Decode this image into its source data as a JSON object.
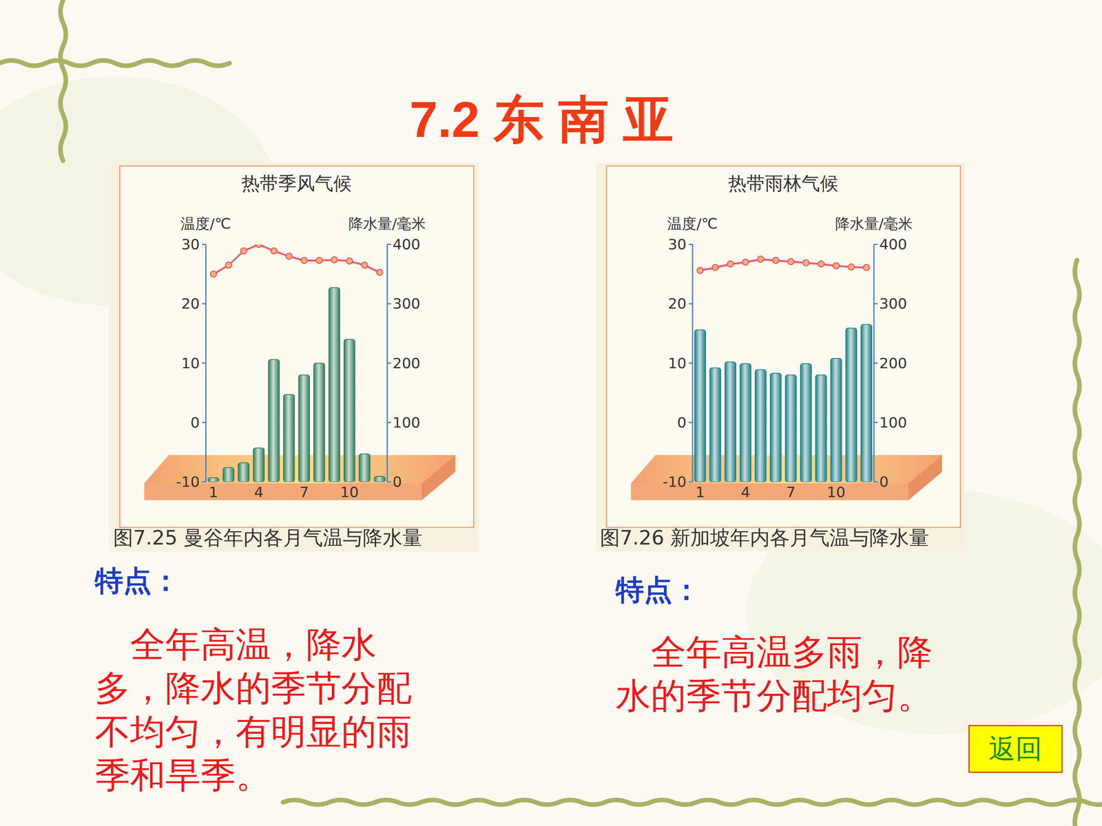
{
  "slide_title": "7.2 东 南 亚",
  "chart_data": [
    {
      "type": "bar_line",
      "title": "热带季风气候",
      "y_label": "温度/℃",
      "y2_label": "降水量/毫米",
      "caption": "图7.25 曼谷年内各月气温与降水量",
      "categories": [
        "1",
        null,
        null,
        "4",
        null,
        null,
        "7",
        null,
        null,
        "10",
        null,
        null
      ],
      "ylim": [
        -10,
        30
      ],
      "yticks": [
        -10,
        0,
        10,
        20,
        30
      ],
      "y2lim": [
        0,
        400
      ],
      "y2ticks": [
        0,
        100,
        200,
        300,
        400
      ],
      "series": [
        {
          "type": "line",
          "color": "#e8506a",
          "marker": "circle",
          "values": [
            25.0,
            26.5,
            28.9,
            30.0,
            28.9,
            28.0,
            27.3,
            27.3,
            27.4,
            27.2,
            26.5,
            25.3
          ]
        },
        {
          "type": "bar",
          "axis": "y2",
          "color": "#2e7d5b",
          "values": [
            7,
            24,
            32,
            57,
            206,
            147,
            180,
            200,
            327,
            240,
            47,
            9
          ]
        }
      ]
    },
    {
      "type": "bar_line",
      "title": "热带雨林气候",
      "y_label": "温度/℃",
      "y2_label": "降水量/毫米",
      "caption": "图7.26 新加坡年内各月气温与降水量",
      "categories": [
        "1",
        null,
        null,
        "4",
        null,
        null,
        "7",
        null,
        null,
        "10",
        null,
        null
      ],
      "ylim": [
        -10,
        30
      ],
      "yticks": [
        -10,
        0,
        10,
        20,
        30
      ],
      "y2lim": [
        0,
        400
      ],
      "y2ticks": [
        0,
        100,
        200,
        300,
        400
      ],
      "series": [
        {
          "type": "line",
          "color": "#e8506a",
          "marker": "circle",
          "values": [
            25.6,
            26.1,
            26.7,
            27.0,
            27.5,
            27.3,
            27.1,
            26.9,
            26.7,
            26.4,
            26.2,
            26.1
          ]
        },
        {
          "type": "bar",
          "axis": "y2",
          "color": "#1f7f86",
          "values": [
            256,
            192,
            202,
            199,
            189,
            183,
            180,
            199,
            180,
            208,
            259,
            265
          ]
        }
      ]
    }
  ],
  "features": [
    {
      "heading": "特点：",
      "text": "全年高温，降水多，降水的季节分配不均匀，有明显的雨季和旱季。"
    },
    {
      "heading": "特点：",
      "text": "全年高温多雨，降水的季节分配均匀。"
    }
  ],
  "button": "返回"
}
